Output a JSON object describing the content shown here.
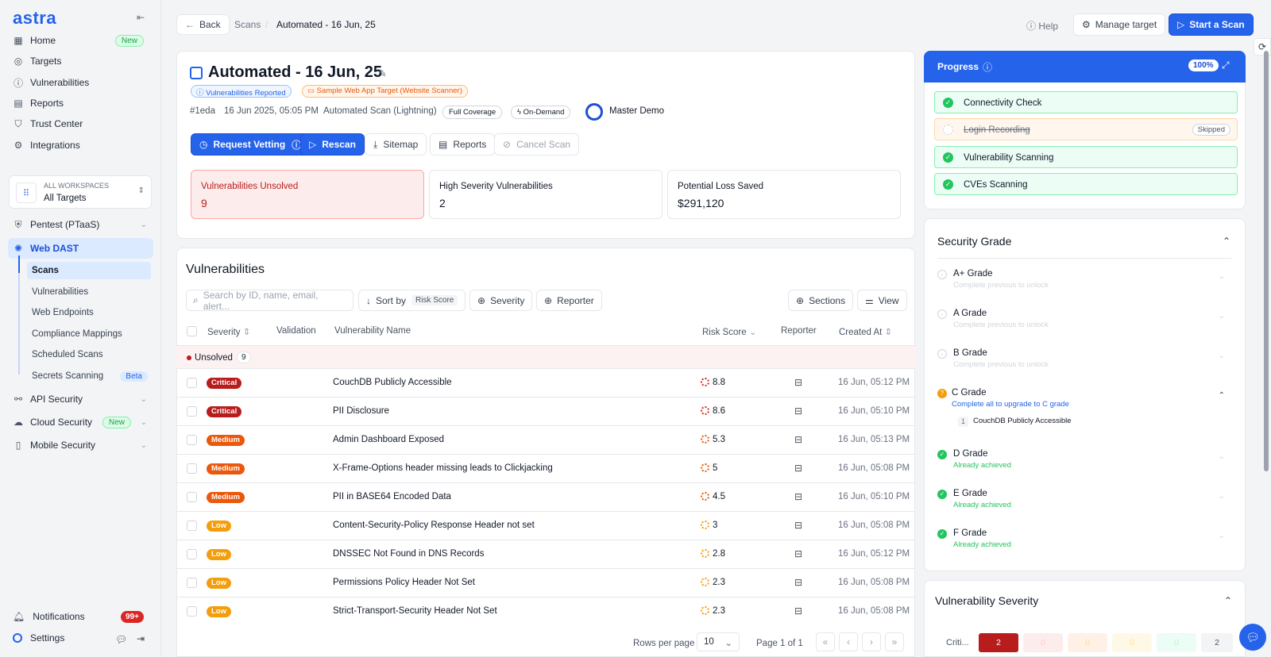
{
  "app": {
    "logo": "astra"
  },
  "sidebar": {
    "nav": [
      {
        "label": "Home",
        "badge": "New"
      },
      {
        "label": "Targets"
      },
      {
        "label": "Vulnerabilities"
      },
      {
        "label": "Reports"
      },
      {
        "label": "Trust Center"
      },
      {
        "label": "Integrations"
      }
    ],
    "workspace": {
      "heading": "ALL WORKSPACES",
      "value": "All Targets"
    },
    "sections": [
      {
        "label": "Pentest (PTaaS)"
      },
      {
        "label": "Web DAST"
      },
      {
        "label": "API Security"
      },
      {
        "label": "Cloud Security",
        "badge": "New"
      },
      {
        "label": "Mobile Security"
      }
    ],
    "dast_sub": [
      "Scans",
      "Vulnerabilities",
      "Web Endpoints",
      "Compliance Mappings",
      "Scheduled Scans",
      "Secrets Scanning"
    ],
    "beta": "Beta",
    "notifications": {
      "label": "Notifications",
      "count": "99+"
    },
    "settings": "Settings"
  },
  "topbar": {
    "back": "Back",
    "crumb1": "Scans",
    "sep": "/",
    "crumb2": "Automated - 16 Jun, 25",
    "help": "Help",
    "manage": "Manage target",
    "start": "Start a Scan"
  },
  "scan": {
    "title": "Automated - 16 Jun, 25",
    "tag1": "Vulnerabilities Reported",
    "tag2": "Sample Web App Target (Website Scanner)",
    "id": "#1eda",
    "date": "16 Jun 2025, 05:05 PM",
    "type": "Automated Scan (Lightning)",
    "coverage": "Full Coverage",
    "mode": "On-Demand",
    "owner": "Master Demo",
    "actions": {
      "vetting": "Request Vetting",
      "rescan": "Rescan",
      "sitemap": "Sitemap",
      "reports": "Reports",
      "cancel": "Cancel Scan"
    },
    "stats": [
      {
        "label": "Vulnerabilities Unsolved",
        "value": "9"
      },
      {
        "label": "High Severity Vulnerabilities",
        "value": "2"
      },
      {
        "label": "Potential Loss Saved",
        "value": "$291,120"
      }
    ]
  },
  "vulns": {
    "title": "Vulnerabilities",
    "search_placeholder": "Search by ID, name, email, alert...",
    "sort": "Sort by",
    "sort_value": "Risk Score",
    "severity": "Severity",
    "reporter": "Reporter",
    "sections": "Sections",
    "view": "View",
    "headers": {
      "severity": "Severity",
      "validation": "Validation",
      "name": "Vulnerability Name",
      "risk": "Risk Score",
      "reporter": "Reporter",
      "created": "Created At"
    },
    "group": {
      "label": "Unsolved",
      "count": "9"
    },
    "rows": [
      {
        "sev": "Critical",
        "name": "CouchDB Publicly Accessible",
        "score": "8.8",
        "created": "16 Jun, 05:12 PM"
      },
      {
        "sev": "Critical",
        "name": "PII Disclosure",
        "score": "8.6",
        "created": "16 Jun, 05:10 PM"
      },
      {
        "sev": "Medium",
        "name": "Admin Dashboard Exposed",
        "score": "5.3",
        "created": "16 Jun, 05:13 PM"
      },
      {
        "sev": "Medium",
        "name": "X-Frame-Options header missing leads to Clickjacking",
        "score": "5",
        "created": "16 Jun, 05:08 PM"
      },
      {
        "sev": "Medium",
        "name": "PII in BASE64 Encoded Data",
        "score": "4.5",
        "created": "16 Jun, 05:10 PM"
      },
      {
        "sev": "Low",
        "name": "Content-Security-Policy Response Header not set",
        "score": "3",
        "created": "16 Jun, 05:08 PM"
      },
      {
        "sev": "Low",
        "name": "DNSSEC Not Found in DNS Records",
        "score": "2.8",
        "created": "16 Jun, 05:12 PM"
      },
      {
        "sev": "Low",
        "name": "Permissions Policy Header Not Set",
        "score": "2.3",
        "created": "16 Jun, 05:08 PM"
      },
      {
        "sev": "Low",
        "name": "Strict-Transport-Security Header Not Set",
        "score": "2.3",
        "created": "16 Jun, 05:08 PM"
      }
    ],
    "pager": {
      "rows_label": "Rows per page",
      "rows_value": "10",
      "page": "Page 1 of 1"
    }
  },
  "progress": {
    "title": "Progress",
    "pct": "100%",
    "steps": [
      {
        "label": "Connectivity Check",
        "state": "done"
      },
      {
        "label": "Login Recording",
        "state": "skipped",
        "badge": "Skipped"
      },
      {
        "label": "Vulnerability Scanning",
        "state": "done"
      },
      {
        "label": "CVEs Scanning",
        "state": "done"
      }
    ]
  },
  "grades": {
    "title": "Security Grade",
    "items": [
      {
        "label": "A+ Grade",
        "sub": "Complete previous to unlock",
        "state": "locked"
      },
      {
        "label": "A Grade",
        "sub": "Complete previous to unlock",
        "state": "locked"
      },
      {
        "label": "B Grade",
        "sub": "Complete previous to unlock",
        "state": "locked"
      },
      {
        "label": "C Grade",
        "sub": "Complete all to upgrade to C grade",
        "state": "current"
      },
      {
        "label": "D Grade",
        "sub": "Already achieved",
        "state": "done"
      },
      {
        "label": "E Grade",
        "sub": "Already achieved",
        "state": "done"
      },
      {
        "label": "F Grade",
        "sub": "Already achieved",
        "state": "done"
      }
    ],
    "c_item": {
      "num": "1",
      "label": "CouchDB Publicly Accessible"
    }
  },
  "severity_panel": {
    "title": "Vulnerability Severity",
    "row_label": "Criti...",
    "values": [
      "2",
      "0",
      "0",
      "0",
      "0",
      "2"
    ]
  }
}
